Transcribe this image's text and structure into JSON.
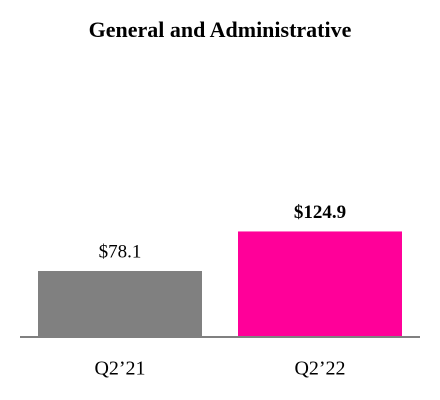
{
  "chart_data": {
    "type": "bar",
    "title": "General and Administrative",
    "categories": [
      "Q2’21",
      "Q2’22"
    ],
    "values": [
      78.1,
      124.9
    ],
    "value_labels": [
      "$78.1",
      "$124.9"
    ],
    "colors": [
      "#808080",
      "#ff0099"
    ]
  }
}
